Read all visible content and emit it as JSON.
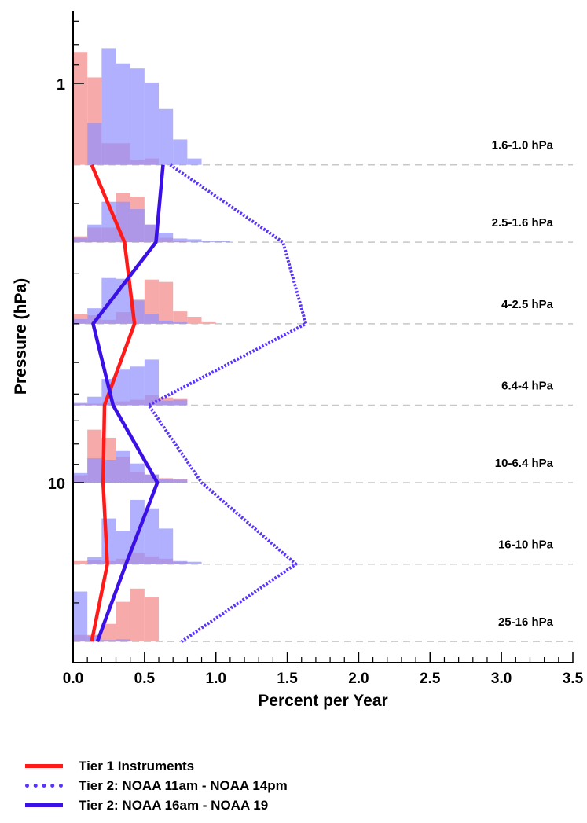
{
  "chart_data": {
    "type": "line",
    "xlabel": "Percent per Year",
    "ylabel": "Pressure (hPa)",
    "xlim": [
      0.0,
      3.5
    ],
    "x_ticks": [
      "0.0",
      "0.5",
      "1.0",
      "1.5",
      "2.0",
      "2.5",
      "3.0",
      "3.5"
    ],
    "y_scale": "log",
    "y_ticks": [
      "1",
      "10"
    ],
    "layers": [
      {
        "label": "1.6-1.0 hPa"
      },
      {
        "label": "2.5-1.6 hPa"
      },
      {
        "label": "4-2.5 hPa"
      },
      {
        "label": "6.4-4 hPa"
      },
      {
        "label": "10-6.4 hPa"
      },
      {
        "label": "16-10 hPa"
      },
      {
        "label": "25-16 hPa"
      }
    ],
    "series": [
      {
        "name": "Tier 1 Instruments",
        "color": "#ff1a1a",
        "style": "solid",
        "values": [
          0.13,
          0.36,
          0.43,
          0.22,
          0.21,
          0.24,
          0.13
        ]
      },
      {
        "name": "Tier 2: NOAA 11am - NOAA 14pm",
        "color": "#5a33ff",
        "style": "dotted",
        "values": [
          0.68,
          1.47,
          1.63,
          0.53,
          0.9,
          1.56,
          0.76
        ]
      },
      {
        "name": "Tier 2: NOAA 16am - NOAA 19",
        "color": "#3b10e6",
        "style": "solid",
        "values": [
          0.63,
          0.58,
          0.14,
          0.28,
          0.59,
          0.37,
          0.17
        ]
      }
    ],
    "histograms": [
      {
        "color": "#f7a5a5",
        "opacity": 0.95,
        "layers": [
          [
            0.89,
            0.69,
            0.17,
            0.17,
            0.04,
            0.05,
            0.0,
            0.0,
            0.0,
            0.0,
            0.0,
            0.0
          ],
          [
            0.08,
            0.2,
            0.2,
            0.67,
            0.62,
            0.24,
            0.06,
            0.02,
            0.0,
            0.0,
            0.0,
            0.0
          ],
          [
            0.13,
            0.11,
            0.05,
            0.15,
            0.31,
            0.57,
            0.54,
            0.16,
            0.09,
            0.02,
            0.0,
            0.0
          ],
          [
            0.02,
            0.02,
            0.03,
            0.05,
            0.07,
            0.13,
            0.1,
            0.09,
            0.0,
            0.0,
            0.0,
            0.0
          ],
          [
            0.1,
            0.72,
            0.61,
            0.35,
            0.15,
            0.11,
            0.06,
            0.05,
            0.0,
            0.0,
            0.0,
            0.0
          ],
          [
            0.04,
            0.05,
            0.04,
            0.07,
            0.15,
            0.1,
            0.07,
            0.03,
            0.0,
            0.0,
            0.0,
            0.0
          ],
          [
            0.09,
            0.09,
            0.24,
            0.54,
            0.72,
            0.6,
            0.0,
            0.0,
            0.0,
            0.0,
            0.0,
            0.0
          ]
        ]
      },
      {
        "color": "#8f8fff",
        "opacity": 0.7,
        "layers": [
          [
            0.0,
            0.33,
            0.92,
            0.8,
            0.76,
            0.65,
            0.44,
            0.2,
            0.05,
            0.0,
            0.0,
            0.0
          ],
          [
            0.06,
            0.24,
            0.55,
            0.55,
            0.45,
            0.24,
            0.13,
            0.05,
            0.04,
            0.02,
            0.02,
            0.0
          ],
          [
            0.06,
            0.2,
            0.59,
            0.58,
            0.3,
            0.13,
            0.04,
            0.02,
            0.0,
            0.0,
            0.0,
            0.0
          ],
          [
            0.03,
            0.11,
            0.34,
            0.46,
            0.5,
            0.59,
            0.06,
            0.07,
            0.0,
            0.0,
            0.0,
            0.0
          ],
          [
            0.13,
            0.33,
            0.31,
            0.43,
            0.26,
            0.11,
            0.05,
            0.04,
            0.0,
            0.0,
            0.0,
            0.0
          ],
          [
            0.0,
            0.09,
            0.59,
            0.43,
            0.83,
            0.72,
            0.46,
            0.04,
            0.03,
            0.0,
            0.0,
            0.0
          ],
          [
            0.68,
            0.08,
            0.02,
            0.03,
            0.0,
            0.0,
            0.0,
            0.0,
            0.0,
            0.0,
            0.0,
            0.0
          ]
        ]
      }
    ],
    "grid": false,
    "legend_position": "bottom-left"
  }
}
